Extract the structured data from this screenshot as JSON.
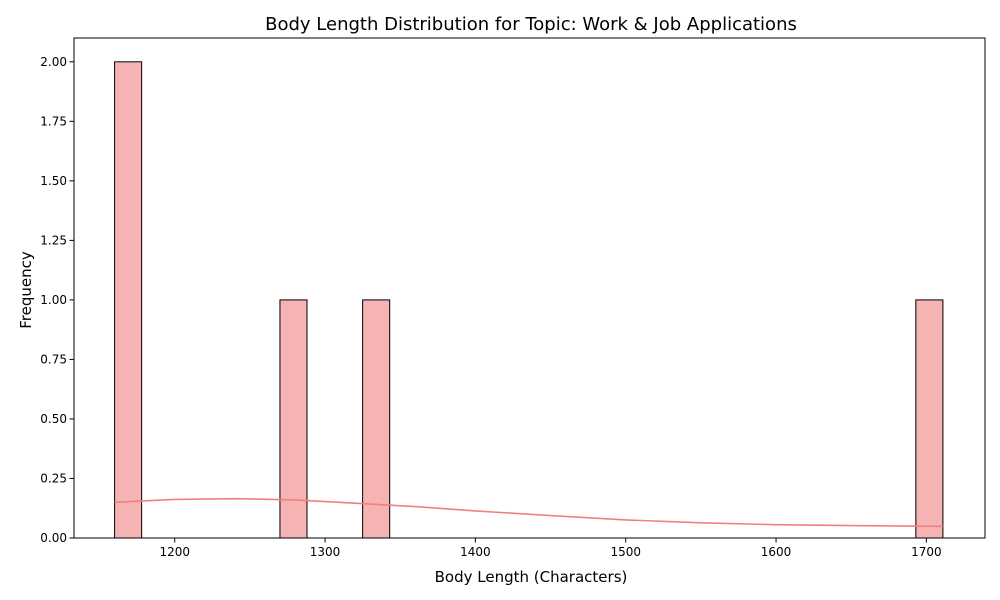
{
  "chart_data": {
    "type": "bar",
    "title": "Body Length Distribution for Topic: Work & Job Applications",
    "xlabel": "Body Length (Characters)",
    "ylabel": "Frequency",
    "xlim": [
      1133,
      1739
    ],
    "ylim": [
      0,
      2.1
    ],
    "x_ticks": [
      1200,
      1300,
      1400,
      1500,
      1600,
      1700
    ],
    "y_ticks": [
      0.0,
      0.25,
      0.5,
      0.75,
      1.0,
      1.25,
      1.5,
      1.75,
      2.0
    ],
    "y_tick_labels": [
      "0.00",
      "0.25",
      "0.50",
      "0.75",
      "1.00",
      "1.25",
      "1.50",
      "1.75",
      "2.00"
    ],
    "bins": [
      {
        "start": 1160,
        "end": 1178,
        "count": 2
      },
      {
        "start": 1270,
        "end": 1288,
        "count": 1
      },
      {
        "start": 1325,
        "end": 1343,
        "count": 1
      },
      {
        "start": 1693,
        "end": 1711,
        "count": 1
      }
    ],
    "kde": {
      "x": [
        1160,
        1200,
        1240,
        1280,
        1320,
        1360,
        1400,
        1450,
        1500,
        1550,
        1600,
        1650,
        1711
      ],
      "y": [
        0.15,
        0.162,
        0.165,
        0.16,
        0.146,
        0.132,
        0.114,
        0.094,
        0.076,
        0.064,
        0.056,
        0.052,
        0.049
      ]
    },
    "bar_color": "#f08080",
    "bar_alpha": 0.6,
    "kde_color": "#f08080",
    "grid": false
  }
}
